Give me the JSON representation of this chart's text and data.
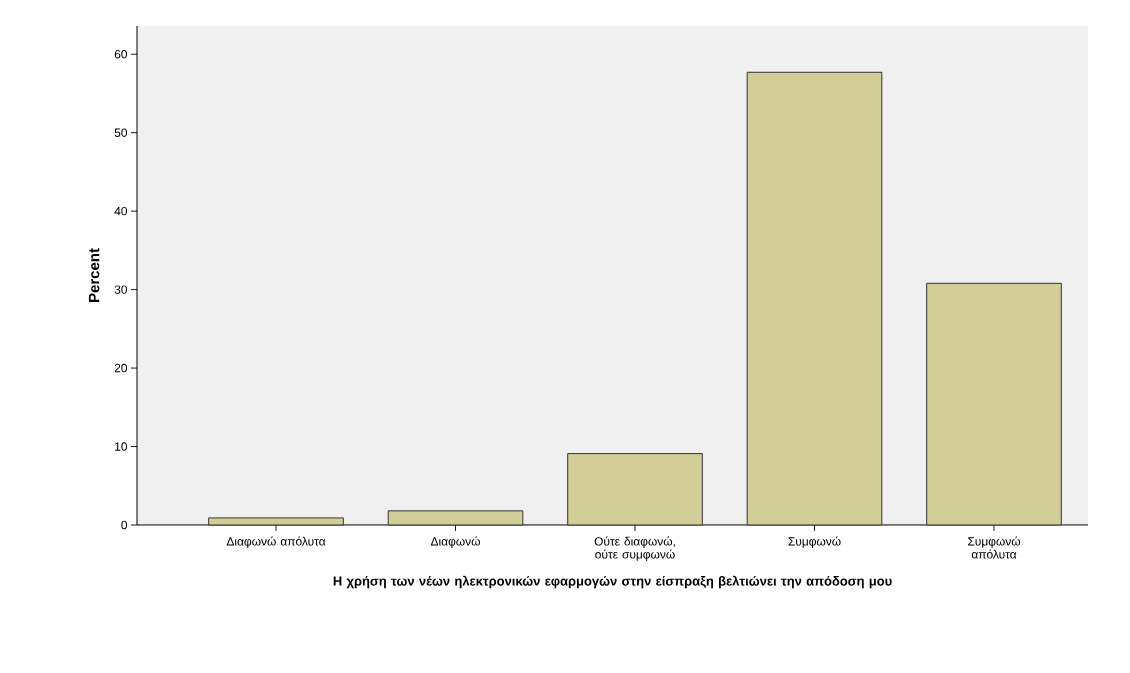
{
  "chart_data": {
    "type": "bar",
    "categories": [
      "Διαφωνώ απόλυτα",
      "Διαφωνώ",
      "Ούτε διαφωνώ, ούτε συμφωνώ",
      "Συμφωνώ",
      "Συμφωνώ απόλυτα"
    ],
    "values": [
      0.9,
      1.8,
      9.1,
      57.7,
      30.8
    ],
    "color": "#d3ce97",
    "xlabel": "Η χρήση των νέων ηλεκτρονικών εφαρμογών στην είσπραξη βελτιώνει την απόδοση μου",
    "ylabel": "Percent",
    "ylim": [
      0,
      63.6
    ],
    "yticks": [
      0,
      10,
      20,
      30,
      40,
      50,
      60
    ]
  }
}
